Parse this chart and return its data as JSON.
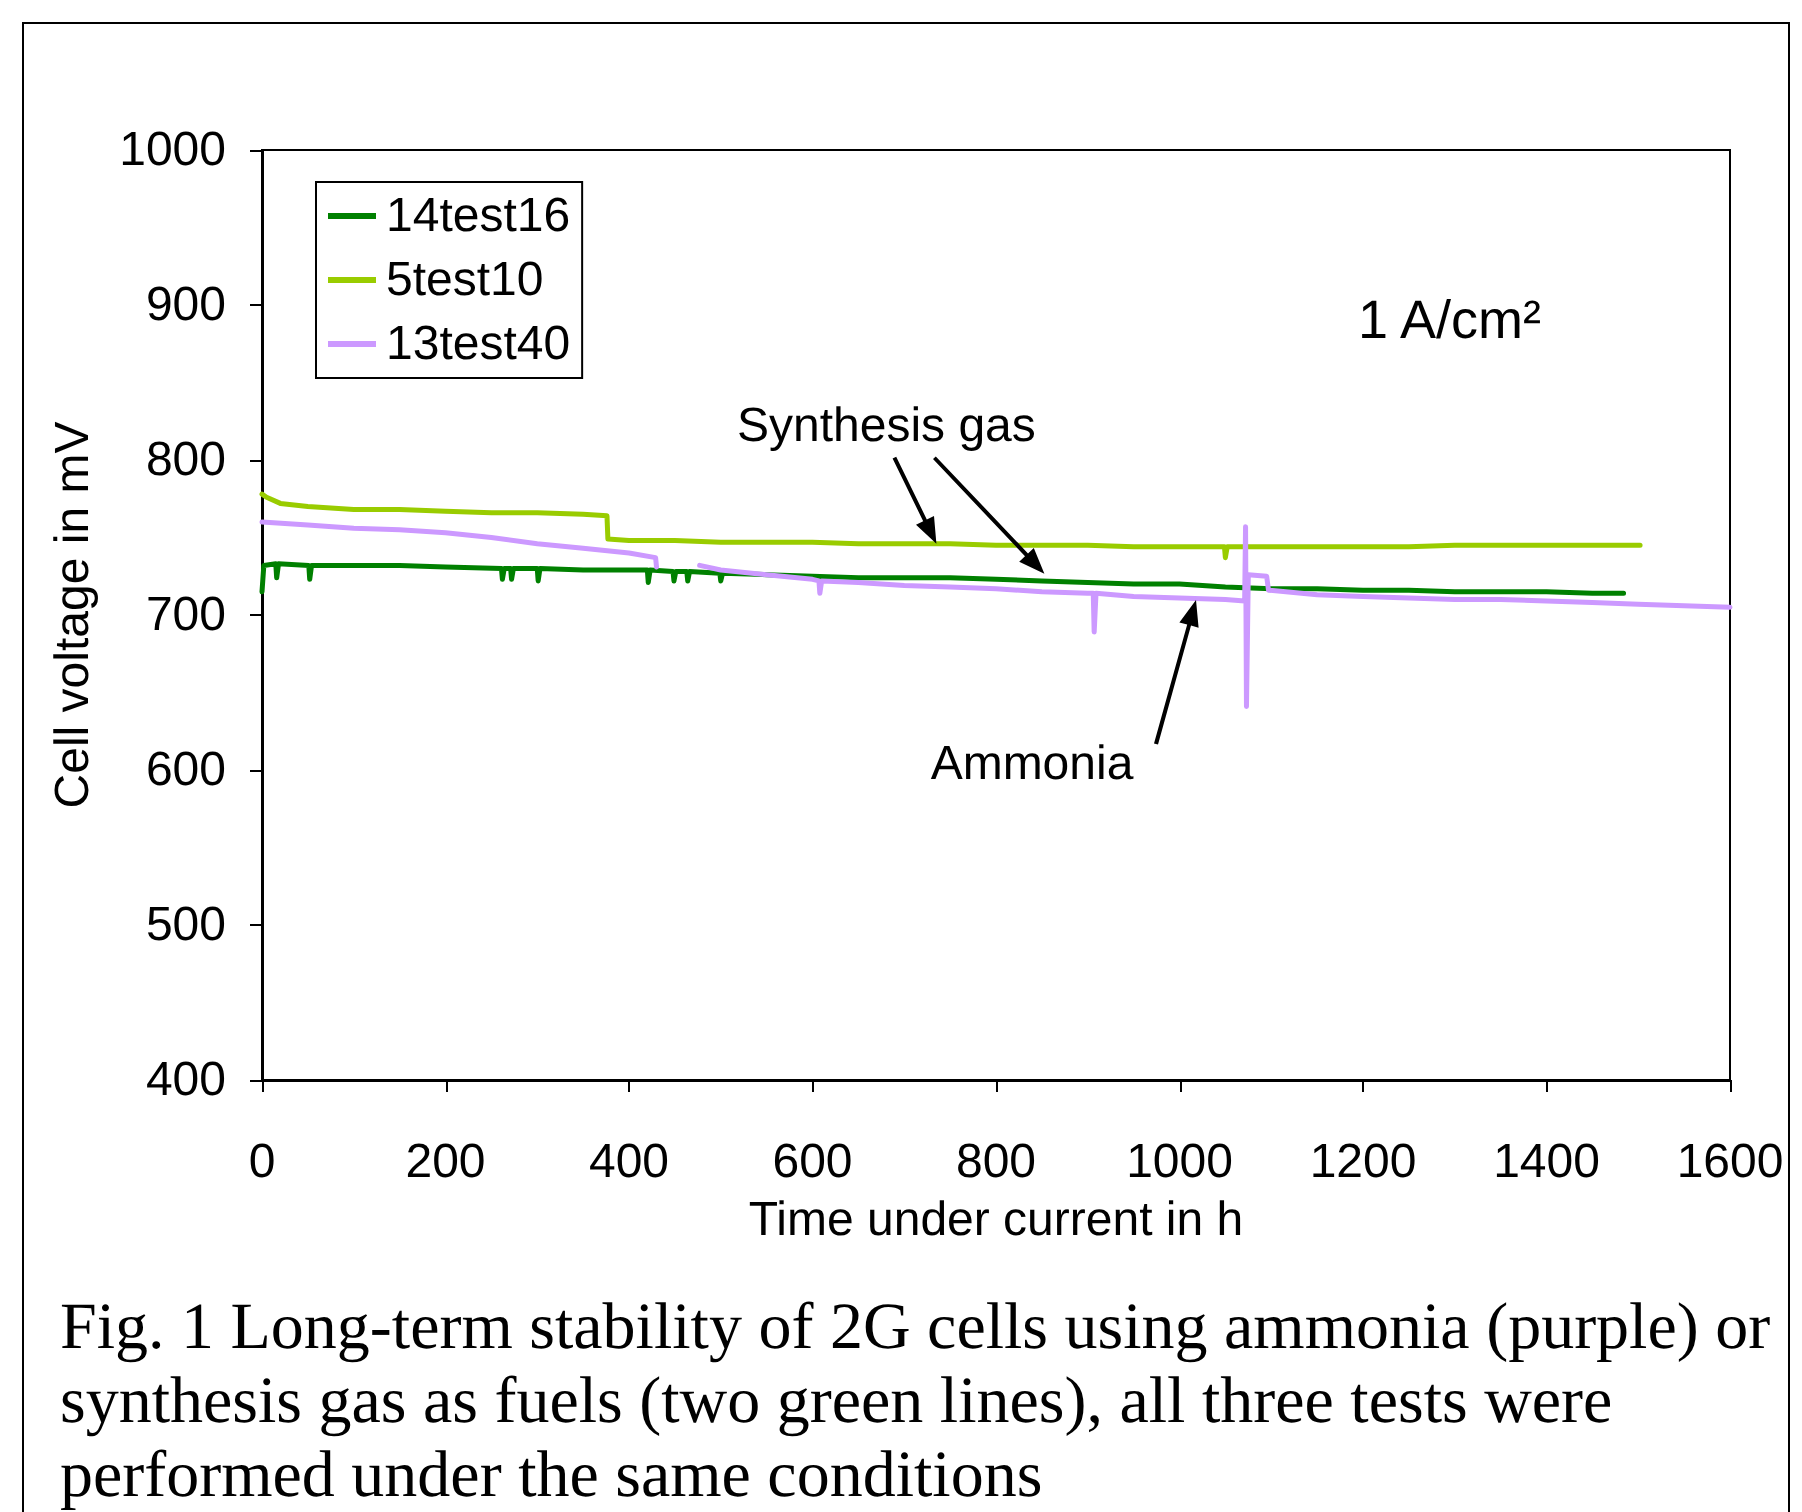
{
  "chart_data": {
    "type": "line",
    "xlabel": "Time under current in h",
    "ylabel": "Cell voltage in mV",
    "xlim": [
      0,
      1600
    ],
    "xticks": [
      0,
      200,
      400,
      600,
      800,
      1000,
      1200,
      1400,
      1600
    ],
    "ylim": [
      400,
      1000
    ],
    "yticks": [
      400,
      500,
      600,
      700,
      800,
      900,
      1000
    ],
    "grid": false,
    "legend": "top left",
    "marker": "none",
    "line_style": "solid",
    "series": [
      {
        "name": "14test16",
        "color": "#008000",
        "x": [
          0,
          2,
          15,
          16,
          18,
          51,
          52,
          54,
          100,
          150,
          200,
          261,
          262,
          264,
          271,
          272,
          274,
          300,
          301,
          303,
          350,
          420,
          421,
          423,
          448,
          449,
          451,
          463,
          464,
          466,
          499,
          500,
          502,
          550,
          600,
          650,
          700,
          750,
          800,
          850,
          900,
          950,
          1000,
          1050,
          1100,
          1150,
          1200,
          1250,
          1300,
          1350,
          1400,
          1450,
          1484
        ],
        "values": [
          715,
          732,
          733,
          724,
          733,
          732,
          723,
          732,
          732,
          732,
          731,
          730,
          723,
          730,
          730,
          723,
          730,
          730,
          722,
          730,
          729,
          729,
          721,
          729,
          728,
          722,
          728,
          728,
          722,
          728,
          727,
          722,
          727,
          726,
          725,
          724,
          724,
          724,
          723,
          722,
          721,
          720,
          720,
          718,
          717,
          717,
          716,
          716,
          715,
          715,
          715,
          714,
          714
        ]
      },
      {
        "name": "5test10",
        "color": "#99cc00",
        "x": [
          0,
          5,
          20,
          50,
          100,
          150,
          200,
          250,
          300,
          350,
          376,
          377,
          400,
          450,
          500,
          550,
          600,
          650,
          700,
          750,
          800,
          850,
          900,
          950,
          1000,
          1049,
          1050,
          1052,
          1100,
          1150,
          1200,
          1250,
          1300,
          1350,
          1400,
          1450,
          1502
        ],
        "values": [
          778,
          776,
          772,
          770,
          768,
          768,
          767,
          766,
          766,
          765,
          764,
          749,
          748,
          748,
          747,
          747,
          747,
          746,
          746,
          746,
          745,
          745,
          745,
          744,
          744,
          744,
          737,
          744,
          744,
          744,
          744,
          744,
          745,
          745,
          745,
          745,
          745
        ]
      },
      {
        "name": "13test40",
        "color": "#cc99ff",
        "x": [
          0,
          50,
          100,
          150,
          200,
          250,
          300,
          350,
          400,
          429,
          430,
          450,
          477,
          500,
          550,
          600,
          607,
          608,
          610,
          650,
          700,
          750,
          800,
          850,
          900,
          906,
          907,
          909,
          950,
          1000,
          1050,
          1071,
          1072,
          1073,
          1075,
          1095,
          1097,
          1150,
          1200,
          1250,
          1300,
          1350,
          1400,
          1450,
          1500,
          1550,
          1600
        ],
        "values": [
          760,
          758,
          756,
          755,
          753,
          750,
          746,
          743,
          740,
          737,
          731,
          null,
          732,
          729,
          726,
          723,
          722,
          714,
          722,
          721,
          719,
          718,
          717,
          715,
          714,
          714,
          689,
          714,
          712,
          711,
          710,
          709,
          757,
          641,
          726,
          725,
          716,
          713,
          712,
          711,
          710,
          710,
          709,
          708,
          707,
          706,
          705
        ]
      }
    ],
    "annotations": [
      {
        "text": "Synthesis gas",
        "x": 735,
        "y": 746
      },
      "Ammonia",
      "1 A/cm²",
      "Fig. 1 Long-term stability of 2G cells using ammonia (purple) or synthesis gas as fuels (two green lines), all three tests were performed under the same conditions"
    ]
  }
}
